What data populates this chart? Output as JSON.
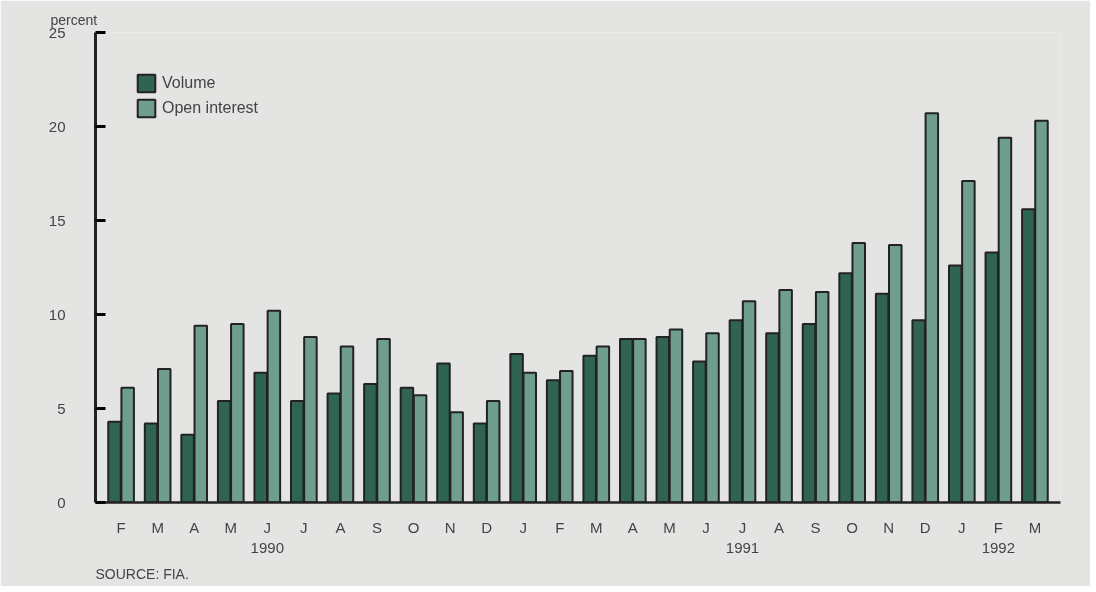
{
  "chart_data": {
    "type": "bar",
    "ylabel": "percent",
    "categories": [
      "F",
      "M",
      "A",
      "M",
      "J\n1990",
      "J",
      "A",
      "S",
      "O",
      "N",
      "D",
      "J",
      "F",
      "M",
      "A",
      "M",
      "J",
      "J\n1991",
      "A",
      "S",
      "O",
      "N",
      "D",
      "J",
      "F\n1992",
      "M"
    ],
    "series": [
      {
        "name": "Volume",
        "color": "#2f6455",
        "values": [
          4.3,
          4.2,
          3.6,
          5.4,
          6.9,
          5.4,
          5.8,
          6.3,
          6.1,
          7.4,
          4.2,
          7.9,
          6.5,
          7.8,
          8.7,
          8.8,
          7.5,
          9.7,
          9.0,
          9.5,
          12.2,
          11.1,
          9.7,
          12.6,
          13.3,
          15.6
        ]
      },
      {
        "name": "Open interest",
        "color": "#6f9e90",
        "values": [
          6.1,
          7.1,
          9.4,
          9.5,
          10.2,
          8.8,
          8.3,
          8.7,
          5.7,
          4.8,
          5.4,
          6.9,
          7.0,
          8.3,
          8.7,
          9.2,
          9.0,
          10.7,
          11.3,
          11.2,
          13.8,
          13.7,
          20.7,
          17.1,
          19.4,
          20.3
        ]
      }
    ],
    "ylim": [
      0,
      25
    ],
    "yticks": [
      0,
      5,
      10,
      15,
      20,
      25
    ],
    "legend": "top left",
    "annotations": [
      "SOURCE: FIA."
    ]
  }
}
